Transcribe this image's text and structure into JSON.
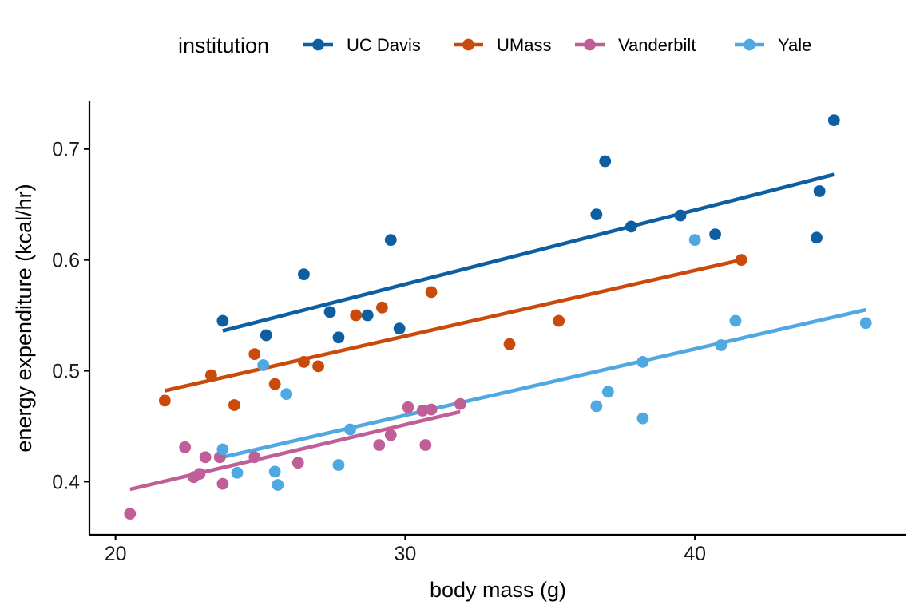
{
  "chart_data": {
    "type": "scatter",
    "xlabel": "body mass (g)",
    "ylabel": "energy expenditure (kcal/hr)",
    "xlim": [
      19.1,
      47.3
    ],
    "ylim": [
      0.352,
      0.743
    ],
    "xticks": [
      20,
      30,
      40
    ],
    "yticks": [
      0.4,
      0.5,
      0.6,
      0.7
    ],
    "grid": false,
    "legend": {
      "title": "institution",
      "placement": "top"
    },
    "series": [
      {
        "name": "UC Davis",
        "color": "#0E5EA2",
        "points": [
          [
            23.7,
            0.545
          ],
          [
            25.2,
            0.532
          ],
          [
            26.5,
            0.587
          ],
          [
            27.4,
            0.553
          ],
          [
            27.7,
            0.53
          ],
          [
            28.7,
            0.55
          ],
          [
            29.5,
            0.618
          ],
          [
            29.8,
            0.538
          ],
          [
            36.6,
            0.641
          ],
          [
            36.9,
            0.689
          ],
          [
            37.8,
            0.63
          ],
          [
            39.5,
            0.64
          ],
          [
            40.7,
            0.623
          ],
          [
            44.3,
            0.662
          ],
          [
            44.2,
            0.62
          ],
          [
            44.8,
            0.726
          ]
        ],
        "fit": {
          "x": [
            23.7,
            44.8
          ],
          "y": [
            0.536,
            0.677
          ]
        }
      },
      {
        "name": "UMass",
        "color": "#C94A0A",
        "points": [
          [
            21.7,
            0.473
          ],
          [
            23.3,
            0.496
          ],
          [
            24.1,
            0.469
          ],
          [
            24.8,
            0.515
          ],
          [
            25.5,
            0.488
          ],
          [
            26.5,
            0.508
          ],
          [
            27.0,
            0.504
          ],
          [
            28.3,
            0.55
          ],
          [
            29.2,
            0.557
          ],
          [
            30.9,
            0.571
          ],
          [
            33.6,
            0.524
          ],
          [
            35.3,
            0.545
          ],
          [
            41.6,
            0.6
          ]
        ],
        "fit": {
          "x": [
            21.7,
            41.6
          ],
          "y": [
            0.482,
            0.6
          ]
        }
      },
      {
        "name": "Vanderbilt",
        "color": "#C05E98",
        "points": [
          [
            20.5,
            0.371
          ],
          [
            22.4,
            0.431
          ],
          [
            22.7,
            0.404
          ],
          [
            22.9,
            0.407
          ],
          [
            23.1,
            0.422
          ],
          [
            23.6,
            0.422
          ],
          [
            23.7,
            0.398
          ],
          [
            24.8,
            0.422
          ],
          [
            26.3,
            0.417
          ],
          [
            29.1,
            0.433
          ],
          [
            29.5,
            0.442
          ],
          [
            30.1,
            0.467
          ],
          [
            30.6,
            0.464
          ],
          [
            30.7,
            0.433
          ],
          [
            30.9,
            0.465
          ],
          [
            31.9,
            0.47
          ]
        ],
        "fit": {
          "x": [
            20.5,
            31.9
          ],
          "y": [
            0.393,
            0.463
          ]
        }
      },
      {
        "name": "Yale",
        "color": "#4FA8E2",
        "points": [
          [
            23.7,
            0.429
          ],
          [
            24.2,
            0.408
          ],
          [
            25.1,
            0.505
          ],
          [
            25.5,
            0.409
          ],
          [
            25.6,
            0.397
          ],
          [
            25.9,
            0.479
          ],
          [
            27.7,
            0.415
          ],
          [
            28.1,
            0.447
          ],
          [
            36.6,
            0.468
          ],
          [
            37.0,
            0.481
          ],
          [
            38.2,
            0.457
          ],
          [
            38.2,
            0.508
          ],
          [
            40.0,
            0.618
          ],
          [
            40.9,
            0.523
          ],
          [
            41.4,
            0.545
          ],
          [
            45.9,
            0.543
          ]
        ],
        "fit": {
          "x": [
            23.7,
            45.9
          ],
          "y": [
            0.422,
            0.555
          ]
        }
      }
    ]
  }
}
